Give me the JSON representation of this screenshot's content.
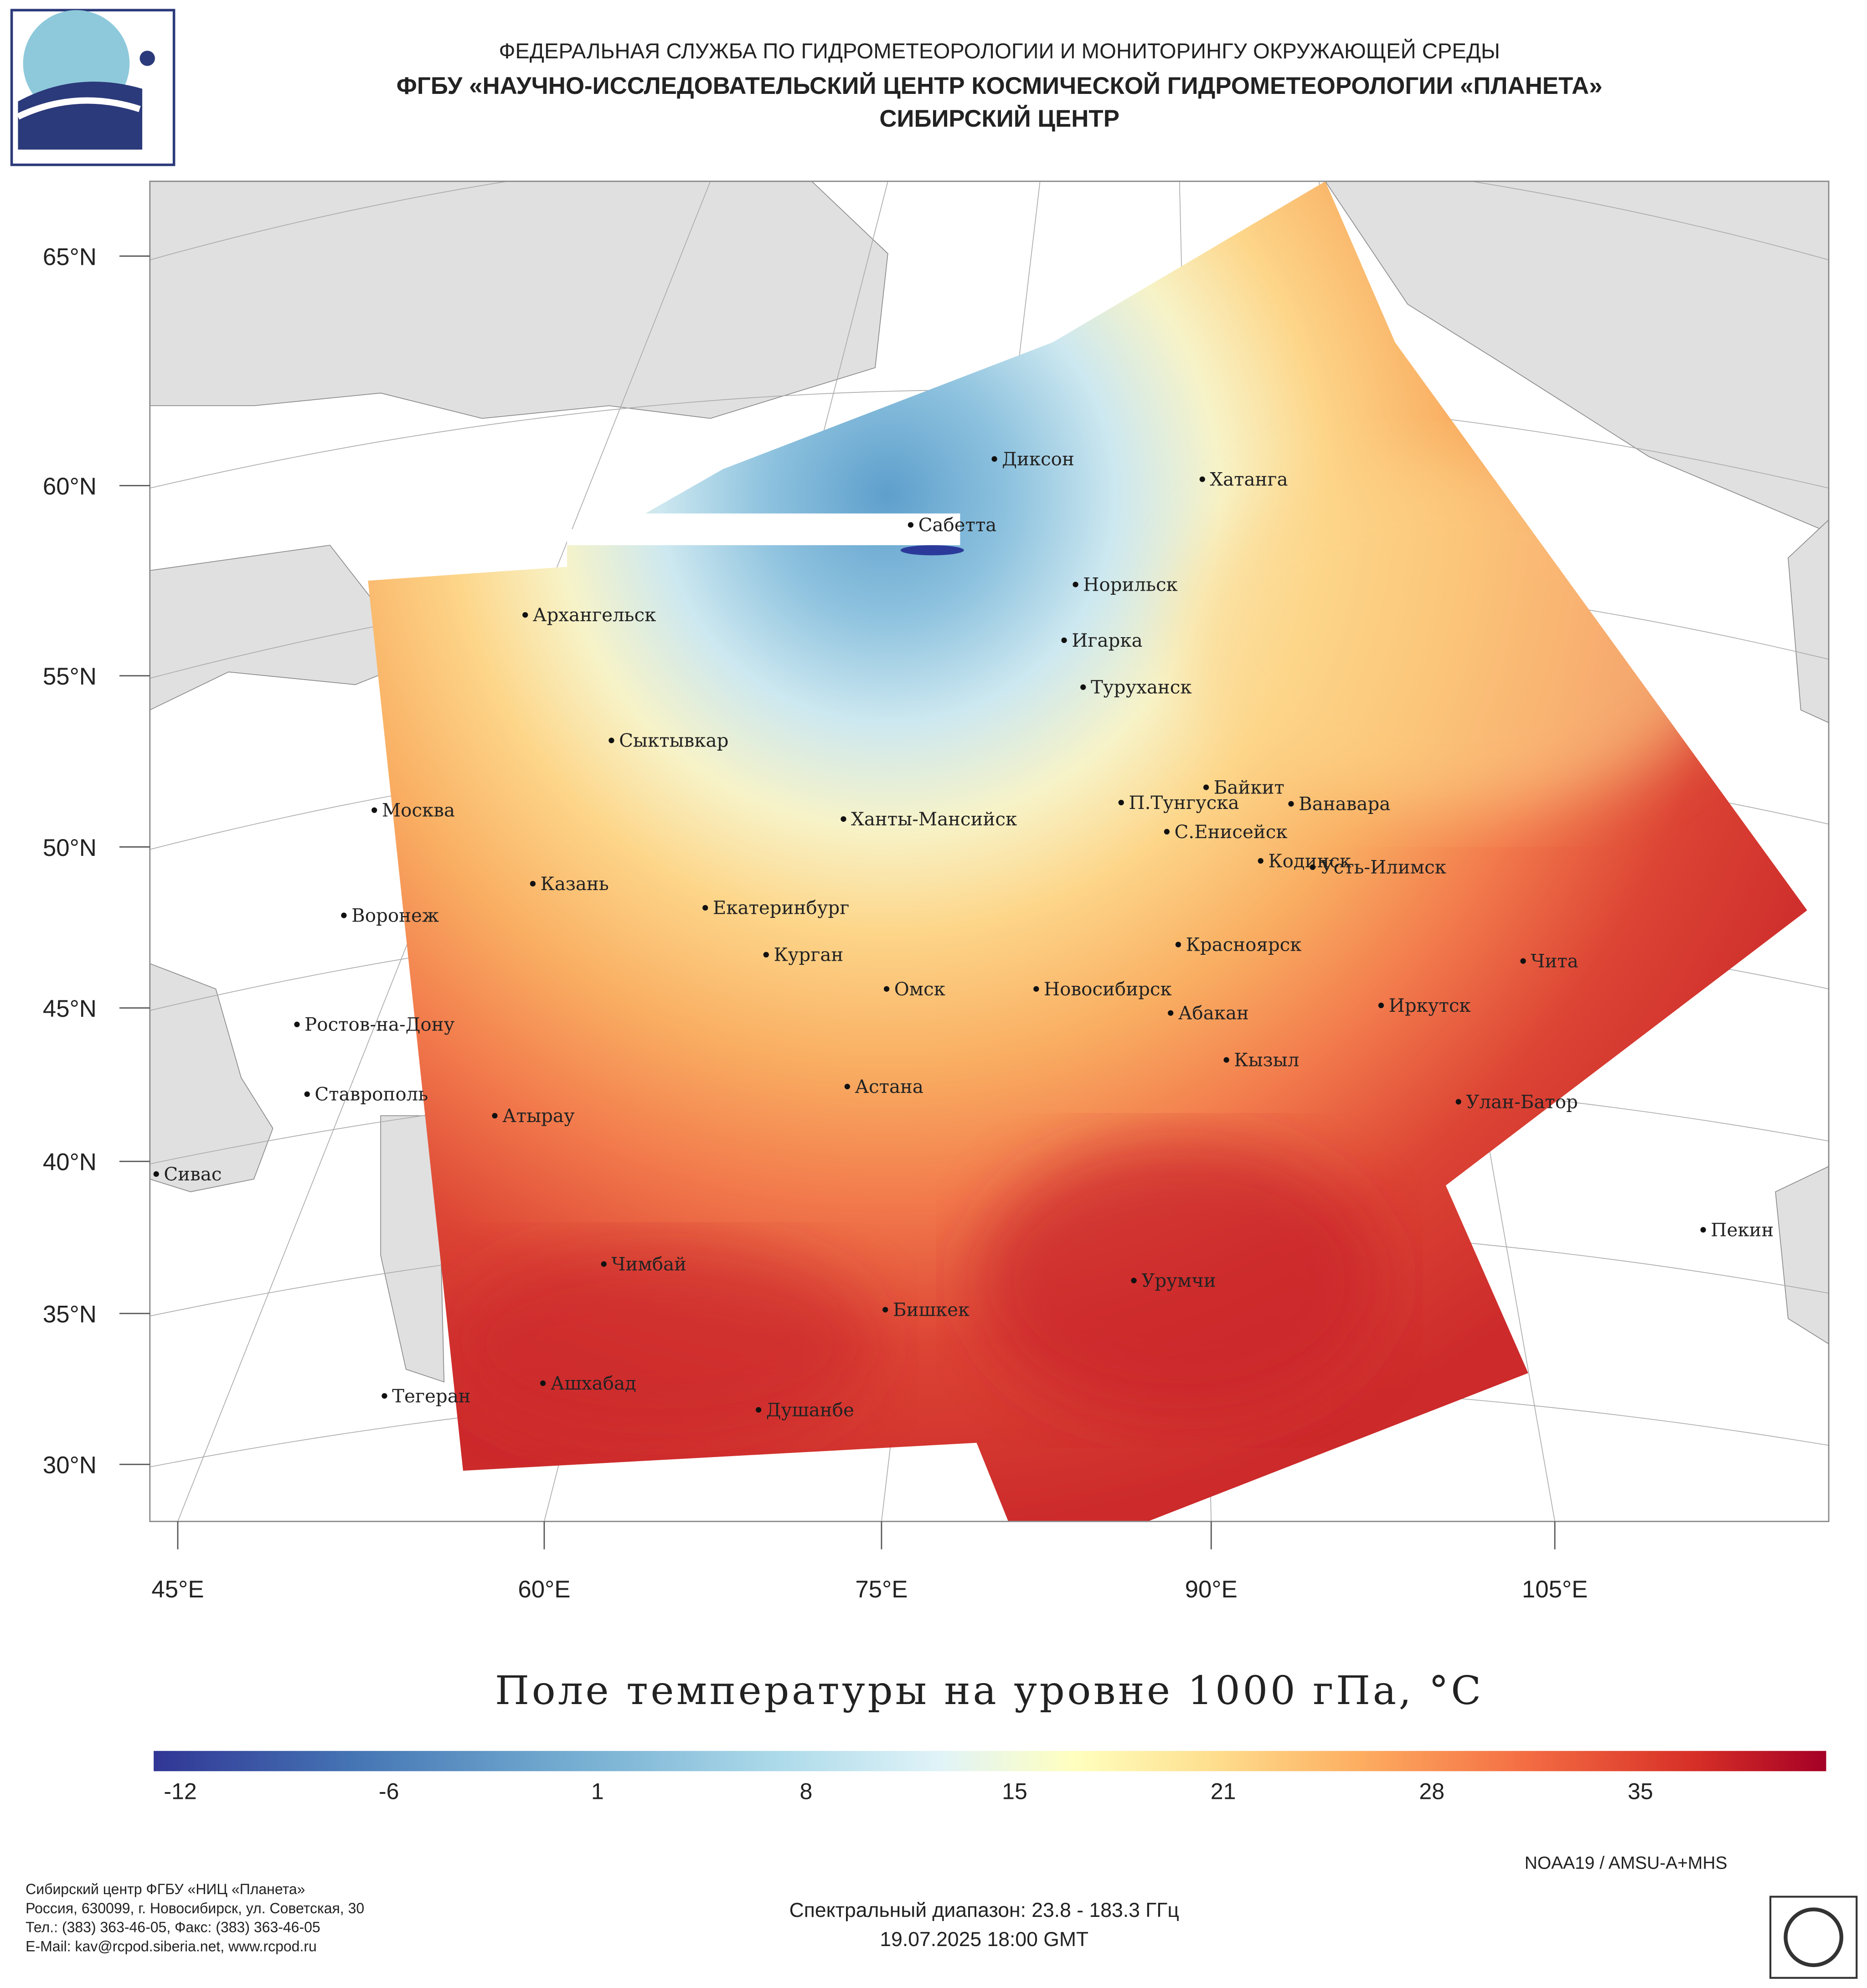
{
  "header": {
    "line1": "ФЕДЕРАЛЬНАЯ СЛУЖБА ПО ГИДРОМЕТЕОРОЛОГИИ И МОНИТОРИНГУ ОКРУЖАЮЩЕЙ СРЕДЫ",
    "line2": "ФГБУ «НАУЧНО-ИССЛЕДОВАТЕЛЬСКИЙ ЦЕНТР КОСМИЧЕСКОЙ ГИДРОМЕТЕОРОЛОГИИ «ПЛАНЕТА»",
    "line3": "СИБИРСКИЙ ЦЕНТР"
  },
  "map": {
    "lat_labels": [
      "65°N",
      "60°N",
      "55°N",
      "50°N",
      "45°N",
      "40°N",
      "35°N",
      "30°N"
    ],
    "lon_labels": [
      "45°E",
      "60°E",
      "75°E",
      "90°E",
      "105°E"
    ],
    "cities": [
      "Диксон",
      "Хатанга",
      "Сабетта",
      "Норильск",
      "Архангельск",
      "Игарка",
      "Туруханск",
      "Сыктывкар",
      "Байкит",
      "Москва",
      "П.Тунгуска",
      "Ванавара",
      "Ханты-Мансийск",
      "С.Енисейск",
      "Кодинск",
      "Усть-Илимск",
      "Казань",
      "Екатеринбург",
      "Воронеж",
      "Красноярск",
      "Курган",
      "Чита",
      "Омск",
      "Новосибирск",
      "Иркутск",
      "Абакан",
      "Ростов-на-Дону",
      "Кызыл",
      "Астана",
      "Ставрополь",
      "Улан-Батор",
      "Атырау",
      "Сивас",
      "Пекин",
      "Чимбай",
      "Урумчи",
      "Бишкек",
      "Ашхабад",
      "Душанбе",
      "Тегеран"
    ]
  },
  "title": "Поле температуры на уровне 1000 гПа, °C",
  "colorbar": {
    "ticks": [
      -12,
      -6,
      1,
      8,
      15,
      21,
      28,
      35
    ]
  },
  "satellite": "NOAA19 / AMSU-A+MHS",
  "spectral": "Спектральный диапазон: 23.8 - 183.3 ГГц",
  "datetime": "19.07.2025 18:00 GMT",
  "contacts": [
    "Сибирский центр ФГБУ «НИЦ «Планета»",
    "Россия, 630099, г. Новосибирск, ул. Советская, 30",
    "Тел.: (383) 363-46-05, Факс: (383) 363-46-05",
    "E-Mail: kav@rcpod.siberia.net, www.rcpod.ru"
  ]
}
